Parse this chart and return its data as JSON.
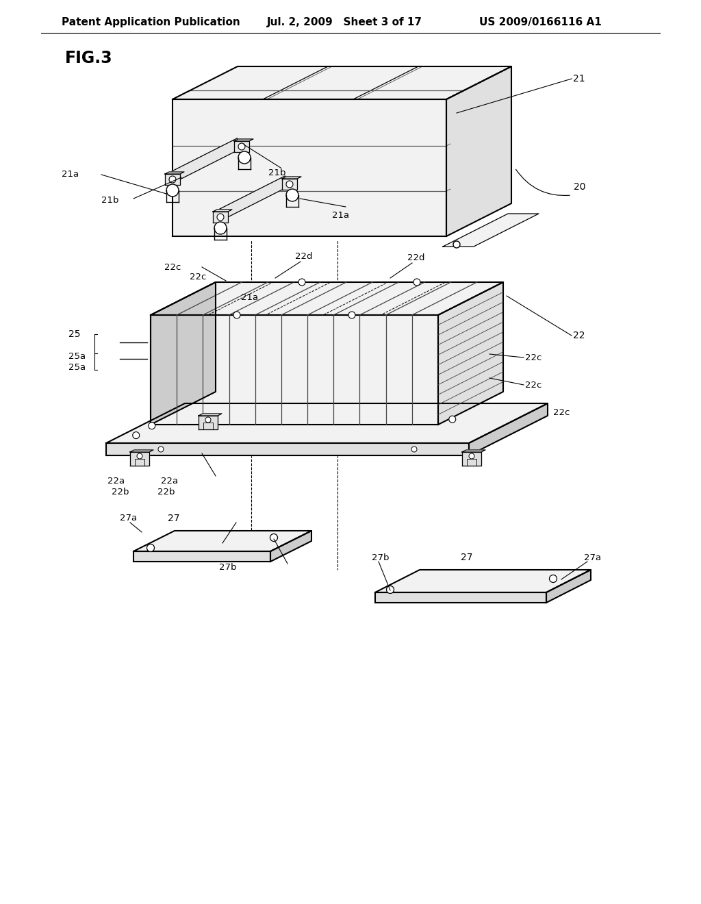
{
  "title_left": "Patent Application Publication",
  "title_mid": "Jul. 2, 2009   Sheet 3 of 17",
  "title_right": "US 2009/0166116 A1",
  "fig_label": "FIG.3",
  "background_color": "#ffffff",
  "line_color": "#000000",
  "header_fontsize": 11,
  "fig_label_fontsize": 16,
  "lw_main": 1.5,
  "lw_thin": 0.9,
  "lw_ann": 0.8,
  "fill_light": "#f2f2f2",
  "fill_mid": "#e0e0e0",
  "fill_dark": "#cccccc"
}
